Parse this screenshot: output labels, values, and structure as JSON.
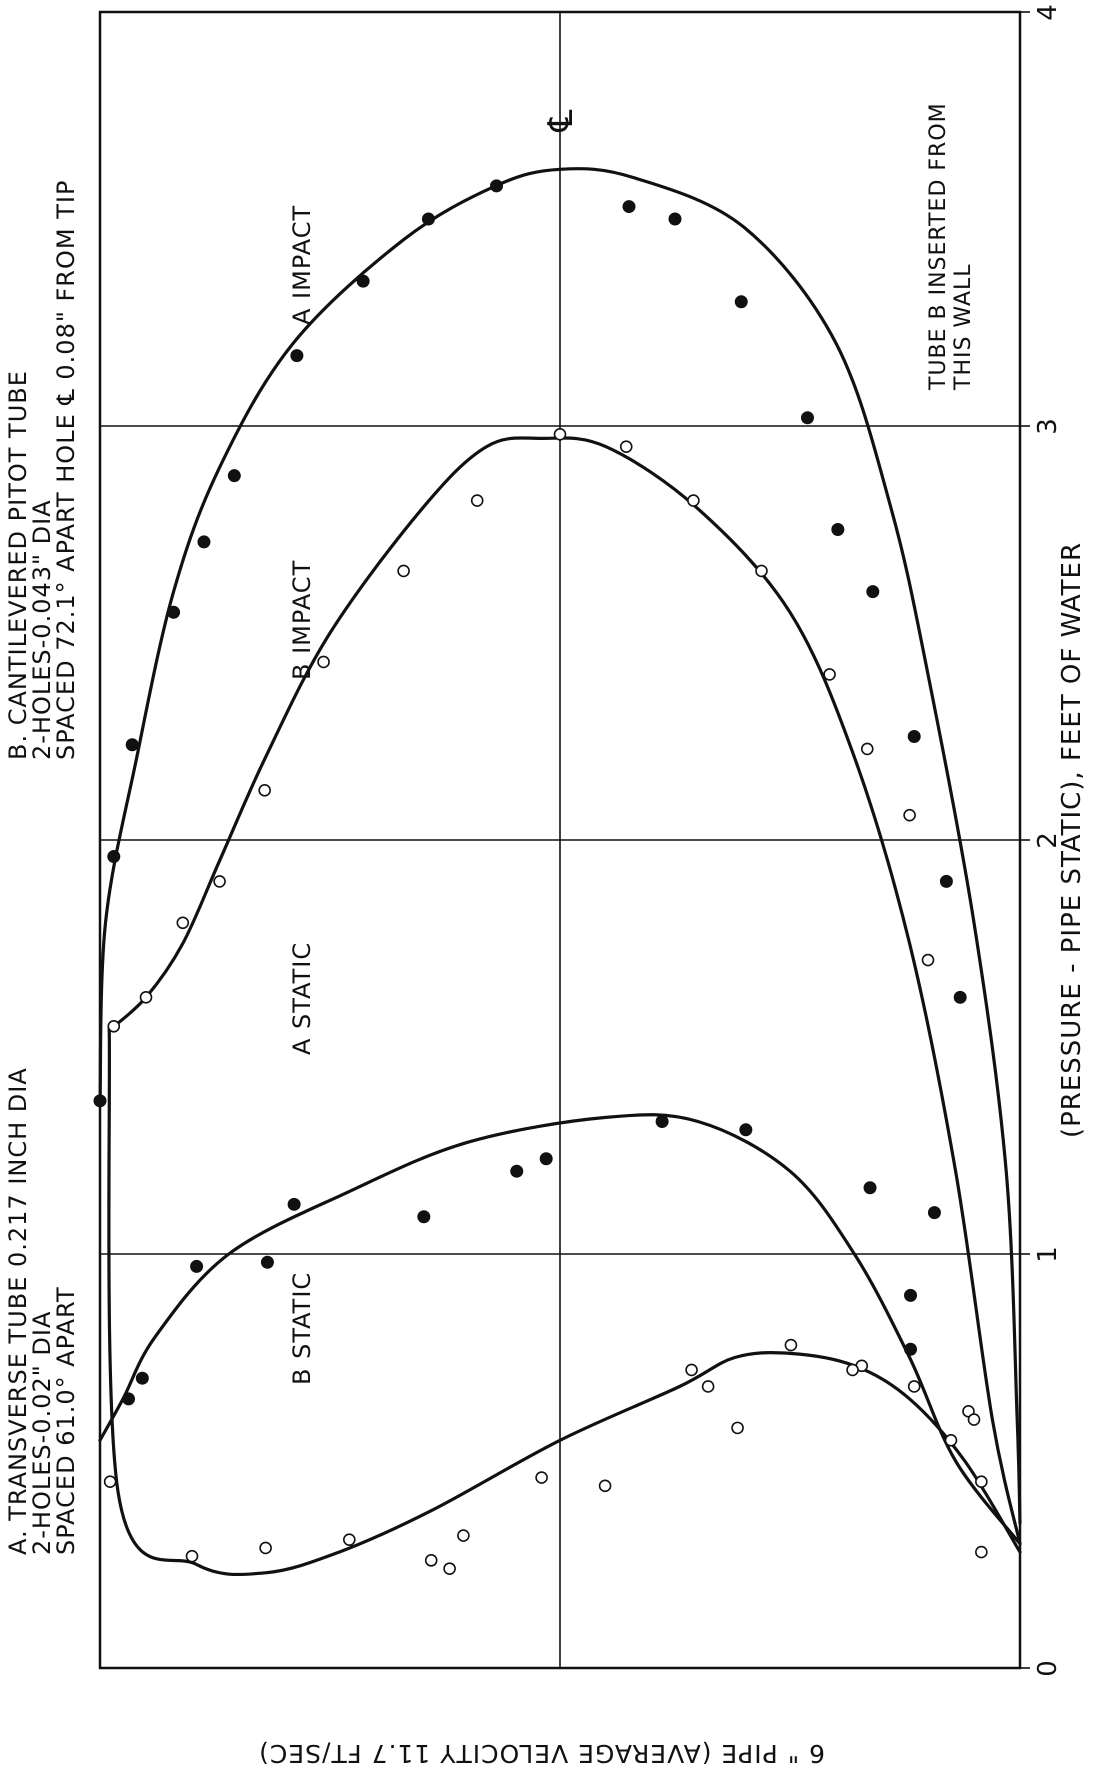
{
  "chart_data": {
    "type": "scatter",
    "orientation": "rotated-90-ccw",
    "title": "",
    "xlabel": "(PRESSURE - PIPE STATIC), FEET OF WATER",
    "ylabel": "6 \" PIPE (AVERAGE VELOCITY 11.7 FT/SEC)",
    "xlim": [
      0,
      4
    ],
    "ylim": [
      0,
      1
    ],
    "x_ticks": [
      "0",
      "1",
      "2",
      "3",
      "4"
    ],
    "grid": true,
    "centerline_symbol": "℄",
    "series": [
      {
        "name": "A IMPACT",
        "marker": "filled",
        "curve": [
          [
            1.36,
            0.0
          ],
          [
            1.8,
            0.006
          ],
          [
            2.2,
            0.04
          ],
          [
            2.6,
            0.08
          ],
          [
            2.9,
            0.13
          ],
          [
            3.2,
            0.21
          ],
          [
            3.45,
            0.33
          ],
          [
            3.58,
            0.43
          ],
          [
            3.62,
            0.5
          ],
          [
            3.6,
            0.58
          ],
          [
            3.48,
            0.7
          ],
          [
            3.2,
            0.8
          ],
          [
            2.8,
            0.86
          ],
          [
            2.4,
            0.9
          ],
          [
            1.8,
            0.95
          ],
          [
            1.2,
            0.985
          ],
          [
            0.6,
            0.997
          ],
          [
            0.35,
            1.0
          ]
        ],
        "points": [
          [
            1.96,
            0.015
          ],
          [
            2.23,
            0.035
          ],
          [
            2.55,
            0.08
          ],
          [
            2.72,
            0.113
          ],
          [
            2.88,
            0.146
          ],
          [
            3.17,
            0.214
          ],
          [
            3.35,
            0.286
          ],
          [
            3.5,
            0.357
          ],
          [
            3.58,
            0.431
          ],
          [
            3.53,
            0.575
          ],
          [
            3.5,
            0.625
          ],
          [
            3.3,
            0.697
          ],
          [
            3.02,
            0.769
          ],
          [
            2.75,
            0.802
          ],
          [
            2.6,
            0.84
          ],
          [
            2.25,
            0.885
          ],
          [
            1.9,
            0.92
          ],
          [
            1.62,
            0.935
          ]
        ]
      },
      {
        "name": "B IMPACT",
        "marker": "open",
        "curve": [
          [
            1.54,
            0.01
          ],
          [
            1.62,
            0.05
          ],
          [
            1.75,
            0.09
          ],
          [
            1.95,
            0.13
          ],
          [
            2.2,
            0.18
          ],
          [
            2.5,
            0.25
          ],
          [
            2.8,
            0.35
          ],
          [
            2.95,
            0.42
          ],
          [
            2.97,
            0.48
          ],
          [
            2.95,
            0.55
          ],
          [
            2.8,
            0.65
          ],
          [
            2.55,
            0.75
          ],
          [
            2.2,
            0.82
          ],
          [
            1.75,
            0.88
          ],
          [
            1.2,
            0.93
          ],
          [
            0.6,
            0.97
          ],
          [
            0.3,
            1.0
          ]
        ],
        "points": [
          [
            1.55,
            0.015
          ],
          [
            1.62,
            0.05
          ],
          [
            1.8,
            0.09
          ],
          [
            1.9,
            0.13
          ],
          [
            2.12,
            0.179
          ],
          [
            2.43,
            0.243
          ],
          [
            2.65,
            0.33
          ],
          [
            2.82,
            0.41
          ],
          [
            2.98,
            0.5
          ],
          [
            2.95,
            0.572
          ],
          [
            2.82,
            0.645
          ],
          [
            2.65,
            0.719
          ],
          [
            2.4,
            0.793
          ],
          [
            2.22,
            0.834
          ],
          [
            2.06,
            0.88
          ],
          [
            1.71,
            0.9
          ],
          [
            0.45,
            0.958
          ]
        ]
      },
      {
        "name": "A STATIC",
        "marker": "filled",
        "curve": [
          [
            0.55,
            0.0
          ],
          [
            0.65,
            0.025
          ],
          [
            0.8,
            0.06
          ],
          [
            1.0,
            0.14
          ],
          [
            1.15,
            0.27
          ],
          [
            1.27,
            0.4
          ],
          [
            1.33,
            0.55
          ],
          [
            1.32,
            0.65
          ],
          [
            1.2,
            0.75
          ],
          [
            1.0,
            0.82
          ],
          [
            0.75,
            0.88
          ],
          [
            0.5,
            0.93
          ],
          [
            0.3,
            1.0
          ]
        ],
        "points": [
          [
            1.37,
            0.0
          ],
          [
            0.65,
            0.031
          ],
          [
            0.7,
            0.046
          ],
          [
            0.97,
            0.105
          ],
          [
            0.98,
            0.182
          ],
          [
            1.12,
            0.211
          ],
          [
            1.09,
            0.352
          ],
          [
            1.2,
            0.453
          ],
          [
            1.23,
            0.485
          ],
          [
            1.32,
            0.611
          ],
          [
            1.3,
            0.702
          ],
          [
            1.16,
            0.837
          ],
          [
            0.9,
            0.881
          ],
          [
            1.1,
            0.907
          ],
          [
            0.77,
            0.881
          ]
        ]
      },
      {
        "name": "B STATIC",
        "marker": "open",
        "curve": [
          [
            1.55,
            0.01
          ],
          [
            0.42,
            0.02
          ],
          [
            0.25,
            0.105
          ],
          [
            0.23,
            0.18
          ],
          [
            0.28,
            0.26
          ],
          [
            0.38,
            0.36
          ],
          [
            0.55,
            0.5
          ],
          [
            0.68,
            0.63
          ],
          [
            0.75,
            0.69
          ],
          [
            0.76,
            0.75
          ],
          [
            0.73,
            0.82
          ],
          [
            0.65,
            0.88
          ],
          [
            0.5,
            0.94
          ],
          [
            0.28,
            1.0
          ]
        ],
        "points": [
          [
            0.45,
            0.011
          ],
          [
            0.27,
            0.1
          ],
          [
            0.29,
            0.18
          ],
          [
            0.31,
            0.271
          ],
          [
            0.26,
            0.36
          ],
          [
            0.32,
            0.395
          ],
          [
            0.24,
            0.38
          ],
          [
            0.46,
            0.48
          ],
          [
            0.44,
            0.549
          ],
          [
            0.58,
            0.693
          ],
          [
            0.68,
            0.661
          ],
          [
            0.72,
            0.643
          ],
          [
            0.78,
            0.751
          ],
          [
            0.73,
            0.828
          ],
          [
            0.72,
            0.818
          ],
          [
            0.68,
            0.885
          ],
          [
            0.62,
            0.944
          ],
          [
            0.55,
            0.925
          ],
          [
            0.6,
            0.95
          ],
          [
            0.28,
            0.958
          ]
        ]
      }
    ],
    "annotations": [
      {
        "lines": [
          "A. TRANSVERSE TUBE 0.217 INCH DIA",
          "2-HOLES-0.02\" DIA",
          "SPACED 61.0° APART"
        ]
      },
      {
        "lines": [
          "B. CANTILEVERED PITOT TUBE",
          "2-HOLES-0.043\" DIA",
          "SPACED 72.1° APART   HOLE ℄ 0.08\" FROM TIP"
        ]
      },
      {
        "lines": [
          "TUBE B INSERTED FROM",
          "THIS WALL"
        ]
      }
    ],
    "curve_labels": [
      "B  STATIC",
      "A  STATIC",
      "B  IMPACT",
      "A  IMPACT"
    ]
  }
}
